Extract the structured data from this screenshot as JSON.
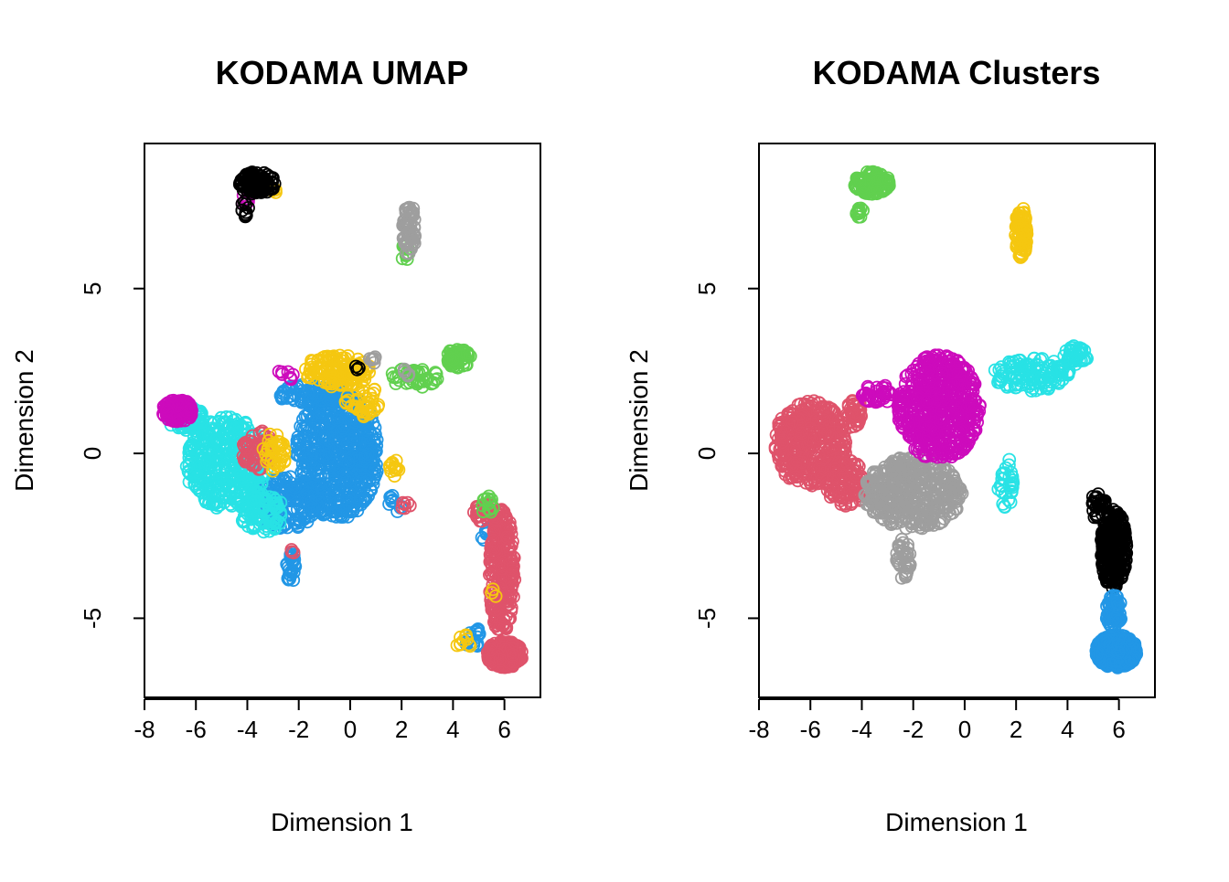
{
  "chart_data": [
    {
      "type": "scatter",
      "title": "KODAMA UMAP",
      "xlabel": "Dimension 1",
      "ylabel": "Dimension 2",
      "xlim": [
        -8.0,
        7.4
      ],
      "ylim": [
        -7.4,
        9.4
      ],
      "xticks": [
        -8,
        -6,
        -4,
        -2,
        0,
        2,
        4,
        6
      ],
      "yticks": [
        -5,
        0,
        5
      ],
      "xtick_labels": [
        "-8",
        "-6",
        "-4",
        "-2",
        "0",
        "2",
        "4",
        "6"
      ],
      "ytick_labels": [
        "-5",
        "0",
        "5"
      ],
      "grid": false,
      "legend": "none",
      "marker": "open-circle",
      "groups": [
        {
          "color": "#2297E6",
          "regions": [
            {
              "cx": -0.5,
              "cy": 0.0,
              "rx": 1.6,
              "ry": 2.0,
              "n": 650
            },
            {
              "cx": -2.5,
              "cy": -1.5,
              "rx": 1.2,
              "ry": 0.8,
              "n": 160
            },
            {
              "cx": -2.3,
              "cy": -3.4,
              "rx": 0.2,
              "ry": 0.5,
              "n": 25
            },
            {
              "cx": -1.5,
              "cy": 1.8,
              "rx": 1.3,
              "ry": 0.3,
              "n": 90
            },
            {
              "cx": 1.8,
              "cy": -1.5,
              "rx": 0.3,
              "ry": 0.3,
              "n": 10
            },
            {
              "cx": 4.8,
              "cy": -5.6,
              "rx": 0.4,
              "ry": 0.3,
              "n": 20
            },
            {
              "cx": 5.2,
              "cy": -2.5,
              "rx": 0.2,
              "ry": 0.3,
              "n": 8
            }
          ]
        },
        {
          "color": "#28E2E5",
          "regions": [
            {
              "cx": -4.8,
              "cy": -0.3,
              "rx": 1.6,
              "ry": 1.4,
              "n": 380
            },
            {
              "cx": -3.4,
              "cy": -1.8,
              "rx": 0.9,
              "ry": 0.6,
              "n": 90
            },
            {
              "cx": -6.4,
              "cy": 1.1,
              "rx": 0.7,
              "ry": 0.4,
              "n": 70
            }
          ]
        },
        {
          "color": "#DF536B",
          "regions": [
            {
              "cx": 5.9,
              "cy": -3.6,
              "rx": 0.5,
              "ry": 1.9,
              "n": 260
            },
            {
              "cx": 6.0,
              "cy": -6.1,
              "rx": 0.7,
              "ry": 0.4,
              "n": 280
            },
            {
              "cx": 5.3,
              "cy": -1.8,
              "rx": 0.5,
              "ry": 0.3,
              "n": 40
            },
            {
              "cx": -3.6,
              "cy": 0.1,
              "rx": 0.6,
              "ry": 0.6,
              "n": 70
            },
            {
              "cx": 2.2,
              "cy": -1.6,
              "rx": 0.2,
              "ry": 0.2,
              "n": 6
            },
            {
              "cx": -2.2,
              "cy": -3.0,
              "rx": 0.1,
              "ry": 0.15,
              "n": 3
            }
          ]
        },
        {
          "color": "#F5C710",
          "regions": [
            {
              "cx": -0.5,
              "cy": 2.5,
              "rx": 1.3,
              "ry": 0.5,
              "n": 140
            },
            {
              "cx": 0.5,
              "cy": 1.6,
              "rx": 0.7,
              "ry": 0.5,
              "n": 40
            },
            {
              "cx": -3.0,
              "cy": 0.0,
              "rx": 0.5,
              "ry": 0.6,
              "n": 40
            },
            {
              "cx": 1.7,
              "cy": -0.4,
              "rx": 0.2,
              "ry": 0.3,
              "n": 12
            },
            {
              "cx": -3.0,
              "cy": 8.0,
              "rx": 0.2,
              "ry": 0.15,
              "n": 5
            },
            {
              "cx": 4.4,
              "cy": -5.7,
              "rx": 0.4,
              "ry": 0.2,
              "n": 10
            },
            {
              "cx": 5.6,
              "cy": -4.2,
              "rx": 0.1,
              "ry": 0.2,
              "n": 3
            }
          ]
        },
        {
          "color": "#CD0BBC",
          "regions": [
            {
              "cx": -6.7,
              "cy": 1.3,
              "rx": 0.6,
              "ry": 0.35,
              "n": 120
            },
            {
              "cx": -4.1,
              "cy": 7.7,
              "rx": 0.15,
              "ry": 0.15,
              "n": 6
            },
            {
              "cx": -2.5,
              "cy": 2.4,
              "rx": 0.3,
              "ry": 0.2,
              "n": 8
            }
          ]
        },
        {
          "color": "#61D04F",
          "regions": [
            {
              "cx": 4.2,
              "cy": 2.9,
              "rx": 0.5,
              "ry": 0.3,
              "n": 60
            },
            {
              "cx": 2.5,
              "cy": 2.3,
              "rx": 1.0,
              "ry": 0.3,
              "n": 40
            },
            {
              "cx": 2.1,
              "cy": 6.1,
              "rx": 0.2,
              "ry": 0.3,
              "n": 12
            },
            {
              "cx": 5.4,
              "cy": -1.6,
              "rx": 0.3,
              "ry": 0.3,
              "n": 14
            }
          ]
        },
        {
          "color": "#9E9E9E",
          "regions": [
            {
              "cx": 2.3,
              "cy": 6.8,
              "rx": 0.25,
              "ry": 0.8,
              "n": 70
            },
            {
              "cx": 0.9,
              "cy": 2.9,
              "rx": 0.15,
              "ry": 0.2,
              "n": 6
            },
            {
              "cx": 2.2,
              "cy": 2.4,
              "rx": 0.2,
              "ry": 0.2,
              "n": 5
            }
          ]
        },
        {
          "color": "#000000",
          "regions": [
            {
              "cx": -3.6,
              "cy": 8.2,
              "rx": 0.7,
              "ry": 0.35,
              "n": 110
            },
            {
              "cx": -4.1,
              "cy": 7.4,
              "rx": 0.15,
              "ry": 0.25,
              "n": 10
            },
            {
              "cx": 0.3,
              "cy": 2.6,
              "rx": 0.1,
              "ry": 0.1,
              "n": 3
            }
          ]
        }
      ]
    },
    {
      "type": "scatter",
      "title": "KODAMA Clusters",
      "xlabel": "Dimension 1",
      "ylabel": "Dimension 2",
      "xlim": [
        -8.0,
        7.4
      ],
      "ylim": [
        -7.4,
        9.4
      ],
      "xticks": [
        -8,
        -6,
        -4,
        -2,
        0,
        2,
        4,
        6
      ],
      "yticks": [
        -5,
        0,
        5
      ],
      "xtick_labels": [
        "-8",
        "-6",
        "-4",
        "-2",
        "0",
        "2",
        "4",
        "6"
      ],
      "ytick_labels": [
        "-5",
        "0",
        "5"
      ],
      "grid": false,
      "legend": "none",
      "marker": "open-circle",
      "groups": [
        {
          "color": "#DF536B",
          "regions": [
            {
              "cx": -6.0,
              "cy": 0.3,
              "rx": 1.4,
              "ry": 1.3,
              "n": 400
            },
            {
              "cx": -4.6,
              "cy": -0.9,
              "rx": 0.8,
              "ry": 0.7,
              "n": 120
            },
            {
              "cx": -4.3,
              "cy": 1.2,
              "rx": 0.3,
              "ry": 0.5,
              "n": 40
            }
          ]
        },
        {
          "color": "#9E9E9E",
          "regions": [
            {
              "cx": -2.0,
              "cy": -1.2,
              "rx": 1.9,
              "ry": 1.1,
              "n": 450
            },
            {
              "cx": -2.4,
              "cy": -3.2,
              "rx": 0.3,
              "ry": 0.6,
              "n": 40
            }
          ]
        },
        {
          "color": "#CD0BBC",
          "regions": [
            {
              "cx": -1.0,
              "cy": 1.4,
              "rx": 1.6,
              "ry": 1.6,
              "n": 560
            },
            {
              "cx": -3.4,
              "cy": 1.8,
              "rx": 0.6,
              "ry": 0.3,
              "n": 40
            }
          ]
        },
        {
          "color": "#28E2E5",
          "regions": [
            {
              "cx": 2.6,
              "cy": 2.4,
              "rx": 1.5,
              "ry": 0.5,
              "n": 120
            },
            {
              "cx": 4.3,
              "cy": 3.0,
              "rx": 0.5,
              "ry": 0.3,
              "n": 40
            },
            {
              "cx": 1.6,
              "cy": -0.9,
              "rx": 0.3,
              "ry": 0.8,
              "n": 30
            }
          ]
        },
        {
          "color": "#000000",
          "regions": [
            {
              "cx": 5.8,
              "cy": -2.9,
              "rx": 0.5,
              "ry": 1.2,
              "n": 300
            },
            {
              "cx": 5.2,
              "cy": -1.6,
              "rx": 0.3,
              "ry": 0.4,
              "n": 30
            }
          ]
        },
        {
          "color": "#2297E6",
          "regions": [
            {
              "cx": 5.9,
              "cy": -6.0,
              "rx": 0.8,
              "ry": 0.5,
              "n": 420
            },
            {
              "cx": 5.8,
              "cy": -4.8,
              "rx": 0.3,
              "ry": 0.5,
              "n": 70
            }
          ]
        },
        {
          "color": "#61D04F",
          "regions": [
            {
              "cx": -3.6,
              "cy": 8.2,
              "rx": 0.7,
              "ry": 0.35,
              "n": 120
            },
            {
              "cx": -4.1,
              "cy": 7.4,
              "rx": 0.15,
              "ry": 0.25,
              "n": 12
            }
          ]
        },
        {
          "color": "#F5C710",
          "regions": [
            {
              "cx": 2.2,
              "cy": 6.7,
              "rx": 0.22,
              "ry": 0.8,
              "n": 80
            }
          ]
        }
      ]
    }
  ]
}
